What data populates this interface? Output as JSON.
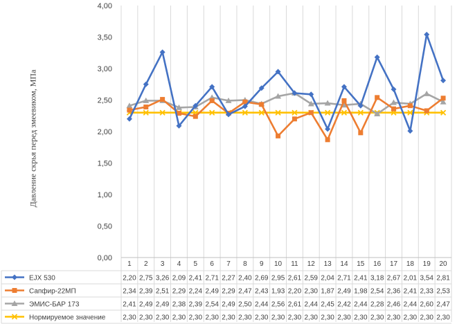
{
  "chart_data": {
    "type": "line",
    "ylabel": "Давление скрья перед змеевиком, МПа",
    "ylim": [
      0,
      4
    ],
    "y_ticks": [
      "0,00",
      "0,50",
      "1,00",
      "1,50",
      "2,00",
      "2,50",
      "3,00",
      "3,50",
      "4,00"
    ],
    "grid": "vertical",
    "legend": "data-table-below",
    "categories": [
      "1",
      "2",
      "3",
      "4",
      "5",
      "6",
      "7",
      "8",
      "9",
      "10",
      "11",
      "12",
      "13",
      "14",
      "15",
      "16",
      "17",
      "18",
      "19",
      "20"
    ],
    "series": [
      {
        "name": "EJX 530",
        "color": "#4472C4",
        "marker": "diamond",
        "values": [
          2.2,
          2.75,
          3.26,
          2.09,
          2.41,
          2.71,
          2.27,
          2.4,
          2.69,
          2.95,
          2.61,
          2.59,
          2.04,
          2.71,
          2.41,
          3.18,
          2.67,
          2.01,
          3.54,
          2.81
        ],
        "labels": [
          "2,20",
          "2,75",
          "3,26",
          "2,09",
          "2,41",
          "2,71",
          "2,27",
          "2,40",
          "2,69",
          "2,95",
          "2,61",
          "2,59",
          "2,04",
          "2,71",
          "2,41",
          "3,18",
          "2,67",
          "2,01",
          "3,54",
          "2,81"
        ]
      },
      {
        "name": "Сапфир-22МП",
        "color": "#ED7D31",
        "marker": "square",
        "values": [
          2.34,
          2.39,
          2.51,
          2.29,
          2.24,
          2.49,
          2.29,
          2.47,
          2.43,
          1.93,
          2.2,
          2.3,
          1.87,
          2.49,
          1.98,
          2.54,
          2.36,
          2.41,
          2.33,
          2.53
        ],
        "labels": [
          "2,34",
          "2,39",
          "2,51",
          "2,29",
          "2,24",
          "2,49",
          "2,29",
          "2,47",
          "2,43",
          "1,93",
          "2,20",
          "2,30",
          "1,87",
          "2,49",
          "1,98",
          "2,54",
          "2,36",
          "2,41",
          "2,33",
          "2,53"
        ]
      },
      {
        "name": "ЭМИС-БАР 173",
        "color": "#A5A5A5",
        "marker": "triangle",
        "values": [
          2.41,
          2.49,
          2.49,
          2.38,
          2.39,
          2.54,
          2.49,
          2.5,
          2.44,
          2.56,
          2.61,
          2.44,
          2.45,
          2.42,
          2.44,
          2.28,
          2.46,
          2.44,
          2.6,
          2.47
        ],
        "labels": [
          "2,41",
          "2,49",
          "2,49",
          "2,38",
          "2,39",
          "2,54",
          "2,49",
          "2,50",
          "2,44",
          "2,56",
          "2,61",
          "2,44",
          "2,45",
          "2,42",
          "2,44",
          "2,28",
          "2,46",
          "2,44",
          "2,60",
          "2,47"
        ]
      },
      {
        "name": "Нормируемое значение",
        "color": "#FFC000",
        "marker": "x",
        "values": [
          2.3,
          2.3,
          2.3,
          2.3,
          2.3,
          2.3,
          2.3,
          2.3,
          2.3,
          2.3,
          2.3,
          2.3,
          2.3,
          2.3,
          2.3,
          2.3,
          2.3,
          2.3,
          2.3,
          2.3
        ],
        "labels": [
          "2,30",
          "2,30",
          "2,30",
          "2,30",
          "2,30",
          "2,30",
          "2,30",
          "2,30",
          "2,30",
          "2,30",
          "2,30",
          "2,30",
          "2,30",
          "2,30",
          "2,30",
          "2,30",
          "2,30",
          "2,30",
          "2,30",
          "2,30"
        ]
      }
    ]
  }
}
